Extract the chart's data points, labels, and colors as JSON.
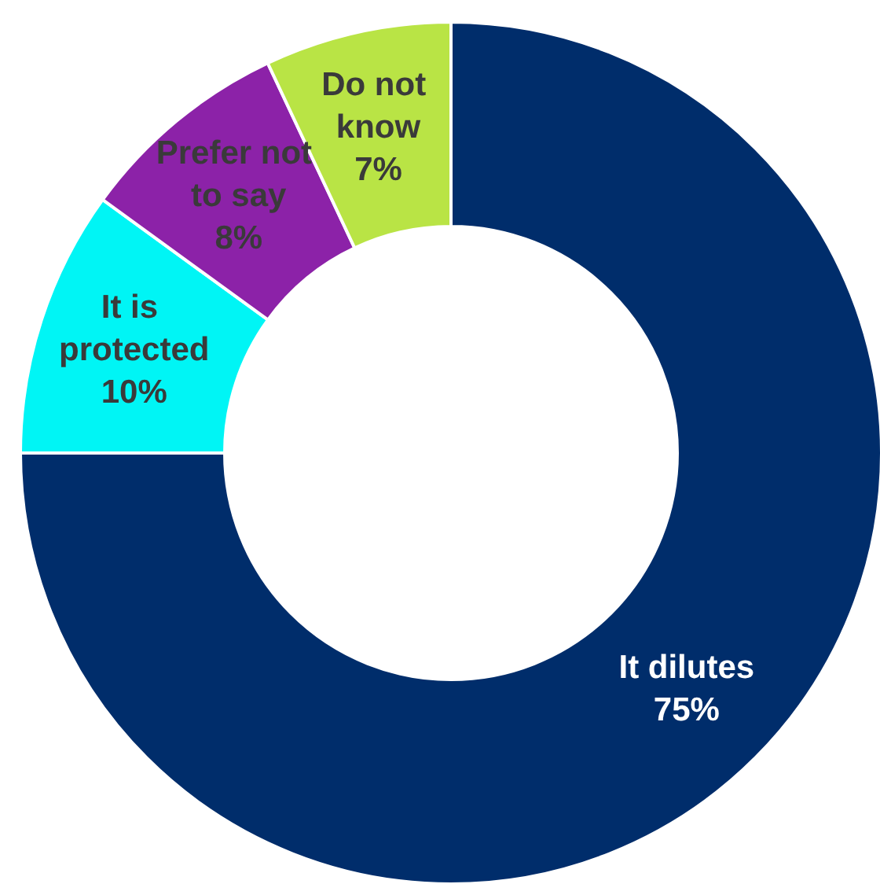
{
  "chart_data": {
    "type": "donut",
    "categories": [
      "It dilutes",
      "It is protected",
      "Prefer not to say",
      "Do not know"
    ],
    "values": [
      75,
      10,
      8,
      7
    ],
    "value_labels": [
      "75%",
      "10%",
      "8%",
      "7%"
    ],
    "colors": [
      "#002d6b",
      "#00f5f5",
      "#8c22a8",
      "#b9e445"
    ],
    "legend": false
  }
}
